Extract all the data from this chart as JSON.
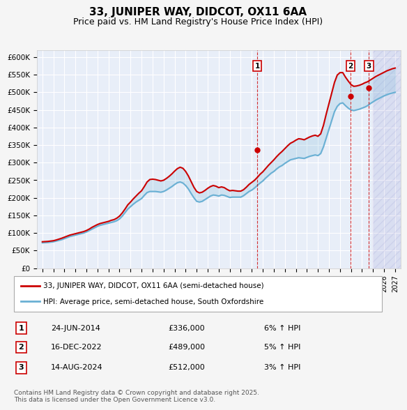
{
  "title": "33, JUNIPER WAY, DIDCOT, OX11 6AA",
  "subtitle": "Price paid vs. HM Land Registry's House Price Index (HPI)",
  "legend_line1": "33, JUNIPER WAY, DIDCOT, OX11 6AA (semi-detached house)",
  "legend_line2": "HPI: Average price, semi-detached house, South Oxfordshire",
  "footer": "Contains HM Land Registry data © Crown copyright and database right 2025.\nThis data is licensed under the Open Government Licence v3.0.",
  "ylim": [
    0,
    620000
  ],
  "yticks": [
    0,
    50000,
    100000,
    150000,
    200000,
    250000,
    300000,
    350000,
    400000,
    450000,
    500000,
    550000,
    600000
  ],
  "ytick_labels": [
    "£0",
    "£50K",
    "£100K",
    "£150K",
    "£200K",
    "£250K",
    "£300K",
    "£350K",
    "£400K",
    "£450K",
    "£500K",
    "£550K",
    "£600K"
  ],
  "xlim_start": 1994.5,
  "xlim_end": 2027.5,
  "sale_events": [
    {
      "num": 1,
      "year": 2014.5,
      "price": 336000,
      "label": "24-JUN-2014",
      "price_str": "£336,000",
      "pct": "6%",
      "dir": "↑"
    },
    {
      "num": 2,
      "year": 2022.97,
      "price": 489000,
      "label": "16-DEC-2022",
      "price_str": "£489,000",
      "pct": "5%",
      "dir": "↑"
    },
    {
      "num": 3,
      "year": 2024.62,
      "price": 512000,
      "label": "14-AUG-2024",
      "price_str": "£512,000",
      "pct": "3%",
      "dir": "↑"
    }
  ],
  "hpi_color": "#6ab0d4",
  "price_color": "#cc0000",
  "hatch_color": "#aaaadd",
  "bg_color": "#e8eef8",
  "grid_color": "#ffffff",
  "hpi_data_x": [
    1995.0,
    1995.25,
    1995.5,
    1995.75,
    1996.0,
    1996.25,
    1996.5,
    1996.75,
    1997.0,
    1997.25,
    1997.5,
    1997.75,
    1998.0,
    1998.25,
    1998.5,
    1998.75,
    1999.0,
    1999.25,
    1999.5,
    1999.75,
    2000.0,
    2000.25,
    2000.5,
    2000.75,
    2001.0,
    2001.25,
    2001.5,
    2001.75,
    2002.0,
    2002.25,
    2002.5,
    2002.75,
    2003.0,
    2003.25,
    2003.5,
    2003.75,
    2004.0,
    2004.25,
    2004.5,
    2004.75,
    2005.0,
    2005.25,
    2005.5,
    2005.75,
    2006.0,
    2006.25,
    2006.5,
    2006.75,
    2007.0,
    2007.25,
    2007.5,
    2007.75,
    2008.0,
    2008.25,
    2008.5,
    2008.75,
    2009.0,
    2009.25,
    2009.5,
    2009.75,
    2010.0,
    2010.25,
    2010.5,
    2010.75,
    2011.0,
    2011.25,
    2011.5,
    2011.75,
    2012.0,
    2012.25,
    2012.5,
    2012.75,
    2013.0,
    2013.25,
    2013.5,
    2013.75,
    2014.0,
    2014.25,
    2014.5,
    2014.75,
    2015.0,
    2015.25,
    2015.5,
    2015.75,
    2016.0,
    2016.25,
    2016.5,
    2016.75,
    2017.0,
    2017.25,
    2017.5,
    2017.75,
    2018.0,
    2018.25,
    2018.5,
    2018.75,
    2019.0,
    2019.25,
    2019.5,
    2019.75,
    2020.0,
    2020.25,
    2020.5,
    2020.75,
    2021.0,
    2021.25,
    2021.5,
    2021.75,
    2022.0,
    2022.25,
    2022.5,
    2022.75,
    2023.0,
    2023.25,
    2023.5,
    2023.75,
    2024.0,
    2024.25,
    2024.5,
    2024.75,
    2025.0,
    2025.25,
    2025.5,
    2025.75,
    2026.0,
    2026.25,
    2026.5,
    2026.75,
    2027.0
  ],
  "hpi_data_y": [
    72000,
    72500,
    73000,
    74000,
    75000,
    77000,
    79000,
    81000,
    84000,
    87000,
    90000,
    92000,
    94000,
    96000,
    98000,
    100000,
    103000,
    107000,
    111000,
    115000,
    119000,
    122000,
    124000,
    126000,
    128000,
    130000,
    132000,
    135000,
    140000,
    148000,
    158000,
    168000,
    175000,
    182000,
    188000,
    193000,
    198000,
    207000,
    215000,
    218000,
    218000,
    218000,
    217000,
    216000,
    218000,
    222000,
    227000,
    232000,
    238000,
    243000,
    245000,
    242000,
    235000,
    225000,
    212000,
    200000,
    190000,
    188000,
    190000,
    195000,
    200000,
    205000,
    208000,
    207000,
    205000,
    208000,
    207000,
    204000,
    201000,
    202000,
    202000,
    202000,
    202000,
    206000,
    212000,
    218000,
    222000,
    228000,
    235000,
    242000,
    248000,
    256000,
    263000,
    270000,
    275000,
    282000,
    288000,
    292000,
    298000,
    303000,
    308000,
    310000,
    312000,
    314000,
    313000,
    312000,
    315000,
    318000,
    320000,
    322000,
    320000,
    326000,
    345000,
    370000,
    395000,
    420000,
    445000,
    460000,
    468000,
    470000,
    462000,
    455000,
    450000,
    448000,
    450000,
    452000,
    455000,
    458000,
    462000,
    468000,
    473000,
    478000,
    482000,
    486000,
    490000,
    493000,
    496000,
    498000,
    500000
  ],
  "price_data_x": [
    1995.0,
    1995.25,
    1995.5,
    1995.75,
    1996.0,
    1996.25,
    1996.5,
    1996.75,
    1997.0,
    1997.25,
    1997.5,
    1997.75,
    1998.0,
    1998.25,
    1998.5,
    1998.75,
    1999.0,
    1999.25,
    1999.5,
    1999.75,
    2000.0,
    2000.25,
    2000.5,
    2000.75,
    2001.0,
    2001.25,
    2001.5,
    2001.75,
    2002.0,
    2002.25,
    2002.5,
    2002.75,
    2003.0,
    2003.25,
    2003.5,
    2003.75,
    2004.0,
    2004.25,
    2004.5,
    2004.75,
    2005.0,
    2005.25,
    2005.5,
    2005.75,
    2006.0,
    2006.25,
    2006.5,
    2006.75,
    2007.0,
    2007.25,
    2007.5,
    2007.75,
    2008.0,
    2008.25,
    2008.5,
    2008.75,
    2009.0,
    2009.25,
    2009.5,
    2009.75,
    2010.0,
    2010.25,
    2010.5,
    2010.75,
    2011.0,
    2011.25,
    2011.5,
    2011.75,
    2012.0,
    2012.25,
    2012.5,
    2012.75,
    2013.0,
    2013.25,
    2013.5,
    2013.75,
    2014.0,
    2014.25,
    2014.5,
    2014.75,
    2015.0,
    2015.25,
    2015.5,
    2015.75,
    2016.0,
    2016.25,
    2016.5,
    2016.75,
    2017.0,
    2017.25,
    2017.5,
    2017.75,
    2018.0,
    2018.25,
    2018.5,
    2018.75,
    2019.0,
    2019.25,
    2019.5,
    2019.75,
    2020.0,
    2020.25,
    2020.5,
    2020.75,
    2021.0,
    2021.25,
    2021.5,
    2021.75,
    2022.0,
    2022.25,
    2022.5,
    2022.75,
    2023.0,
    2023.25,
    2023.5,
    2023.75,
    2024.0,
    2024.25,
    2024.5,
    2024.75,
    2025.0,
    2025.25,
    2025.5,
    2025.75,
    2026.0,
    2026.25,
    2026.5,
    2026.75,
    2027.0
  ],
  "price_data_y": [
    75000,
    75500,
    76000,
    77000,
    78000,
    80000,
    82500,
    85000,
    88000,
    91000,
    94000,
    96000,
    98000,
    100000,
    102000,
    104000,
    107000,
    111000,
    116000,
    120000,
    124000,
    127000,
    129000,
    131000,
    133000,
    136000,
    138000,
    142000,
    148000,
    157000,
    168000,
    180000,
    188000,
    197000,
    205000,
    213000,
    220000,
    232000,
    245000,
    252000,
    253000,
    252000,
    250000,
    248000,
    250000,
    255000,
    261000,
    268000,
    276000,
    283000,
    287000,
    284000,
    275000,
    262000,
    246000,
    230000,
    218000,
    214000,
    216000,
    221000,
    227000,
    232000,
    235000,
    233000,
    229000,
    231000,
    229000,
    224000,
    220000,
    221000,
    220000,
    219000,
    219000,
    223000,
    230000,
    238000,
    244000,
    250000,
    258000,
    267000,
    274000,
    283000,
    292000,
    300000,
    308000,
    317000,
    325000,
    332000,
    340000,
    348000,
    355000,
    359000,
    364000,
    368000,
    367000,
    365000,
    369000,
    373000,
    376000,
    378000,
    375000,
    382000,
    406000,
    438000,
    468000,
    498000,
    528000,
    549000,
    556000,
    556000,
    543000,
    532000,
    522000,
    517000,
    518000,
    520000,
    523000,
    527000,
    530000,
    535000,
    540000,
    545000,
    549000,
    553000,
    557000,
    561000,
    564000,
    567000,
    569000
  ]
}
